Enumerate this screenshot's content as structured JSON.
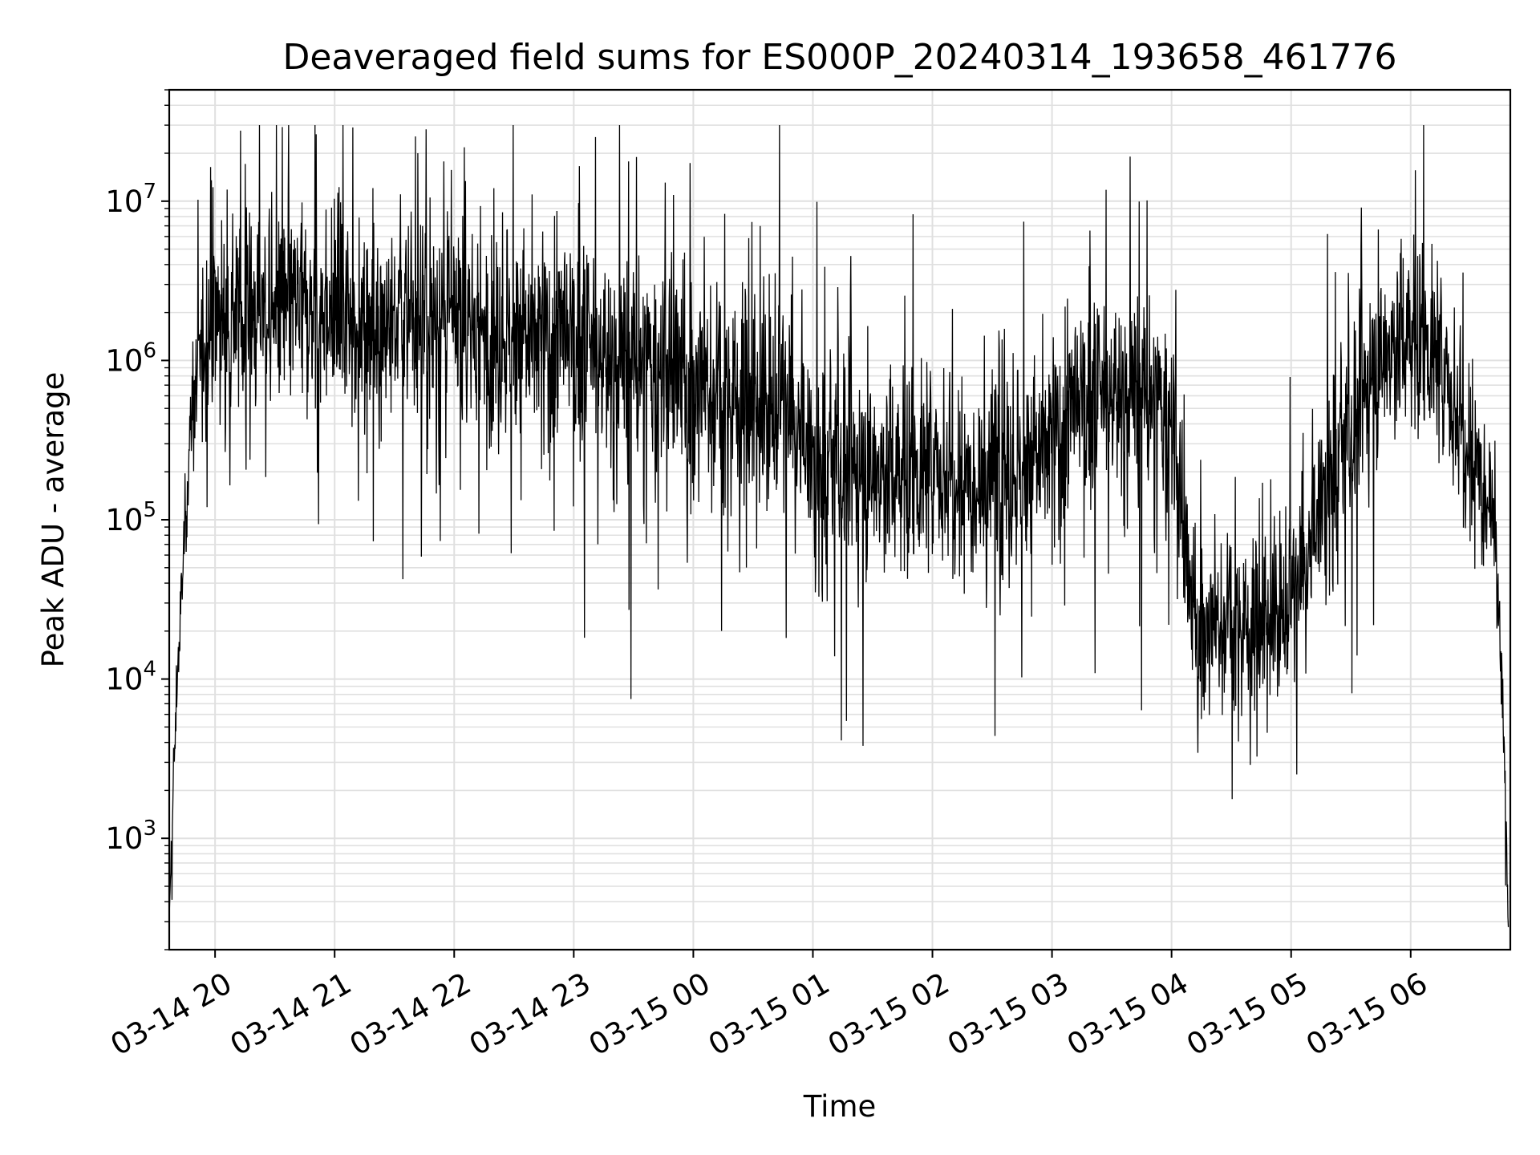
{
  "chart_data": {
    "type": "line",
    "title": "Deaveraged field sums for ES000P_20240314_193658_461776",
    "xlabel": "Time",
    "ylabel": "Peak ADU - average",
    "yscale": "log",
    "ylim": [
      200,
      50000000
    ],
    "xlim": [
      "2024-03-14 19:37",
      "2024-03-15 06:50"
    ],
    "grid": true,
    "line_color": "#000000",
    "grid_color": "#e0e0e0",
    "x_tick_labels": [
      "03-14 20",
      "03-14 21",
      "03-14 22",
      "03-14 23",
      "03-15 00",
      "03-15 01",
      "03-15 02",
      "03-15 03",
      "03-15 04",
      "03-15 05",
      "03-15 06"
    ],
    "y_tick_labels": [
      {
        "base": "10",
        "exp": "3"
      },
      {
        "base": "10",
        "exp": "4"
      },
      {
        "base": "10",
        "exp": "5"
      },
      {
        "base": "10",
        "exp": "6"
      },
      {
        "base": "10",
        "exp": "7"
      }
    ],
    "series": [
      {
        "x": [
          "2024-03-14 19:37",
          "2024-03-14 19:39",
          "2024-03-14 19:41",
          "2024-03-14 19:43",
          "2024-03-14 19:45",
          "2024-03-14 19:48",
          "2024-03-14 19:51",
          "2024-03-14 19:55",
          "2024-03-14 20:00",
          "2024-03-14 20:08",
          "2024-03-14 20:15",
          "2024-03-14 20:30",
          "2024-03-14 20:45",
          "2024-03-14 21:00",
          "2024-03-14 21:15",
          "2024-03-14 21:30",
          "2024-03-14 21:45",
          "2024-03-14 22:00",
          "2024-03-14 22:15",
          "2024-03-14 22:30",
          "2024-03-14 22:45",
          "2024-03-14 23:00",
          "2024-03-14 23:15",
          "2024-03-14 23:30",
          "2024-03-14 23:45",
          "2024-03-15 00:00",
          "2024-03-15 00:15",
          "2024-03-15 00:30",
          "2024-03-15 00:45",
          "2024-03-15 01:00",
          "2024-03-15 01:15",
          "2024-03-15 01:30",
          "2024-03-15 01:45",
          "2024-03-15 02:00",
          "2024-03-15 02:15",
          "2024-03-15 02:30",
          "2024-03-15 02:45",
          "2024-03-15 03:00",
          "2024-03-15 03:15",
          "2024-03-15 03:30",
          "2024-03-15 03:45",
          "2024-03-15 04:00",
          "2024-03-15 04:10",
          "2024-03-15 04:20",
          "2024-03-15 04:30",
          "2024-03-15 04:40",
          "2024-03-15 04:50",
          "2024-03-15 05:00",
          "2024-03-15 05:10",
          "2024-03-15 05:20",
          "2024-03-15 05:30",
          "2024-03-15 05:40",
          "2024-03-15 05:50",
          "2024-03-15 06:00",
          "2024-03-15 06:10",
          "2024-03-15 06:20",
          "2024-03-15 06:30",
          "2024-03-15 06:36",
          "2024-03-15 06:40",
          "2024-03-15 06:43",
          "2024-03-15 06:45",
          "2024-03-15 06:47",
          "2024-03-15 06:49"
        ],
        "y": [
          300,
          2000,
          10000,
          30000,
          100000,
          400000,
          800000,
          1500000,
          2000000,
          2200000,
          2000000,
          2000000,
          2100000,
          2000000,
          1800000,
          1800000,
          1800000,
          1700000,
          1500000,
          1400000,
          1300000,
          1200000,
          1000000,
          900000,
          800000,
          700000,
          600000,
          550000,
          550000,
          200000,
          200000,
          200000,
          200000,
          200000,
          200000,
          200000,
          200000,
          300000,
          500000,
          600000,
          600000,
          400000,
          25000,
          20000,
          25000,
          20000,
          25000,
          30000,
          60000,
          200000,
          300000,
          800000,
          1200000,
          1500000,
          1200000,
          600000,
          300000,
          200000,
          150000,
          80000,
          15000,
          3000,
          300
        ],
        "spread": [
          0.05,
          0.4,
          0.3,
          0.3,
          0.35,
          0.4,
          0.5,
          0.6,
          0.8,
          0.8,
          0.8,
          0.8,
          0.8,
          0.85,
          0.8,
          0.8,
          0.85,
          0.85,
          0.85,
          0.9,
          0.95,
          0.95,
          0.95,
          0.95,
          0.95,
          0.95,
          0.9,
          0.9,
          0.9,
          0.9,
          0.9,
          0.85,
          0.85,
          0.85,
          0.85,
          0.85,
          0.85,
          0.9,
          0.9,
          0.9,
          0.9,
          0.9,
          0.7,
          0.7,
          0.7,
          0.7,
          0.7,
          0.7,
          0.8,
          0.85,
          0.85,
          0.8,
          0.8,
          0.8,
          0.8,
          0.8,
          0.8,
          0.8,
          0.6,
          0.5,
          0.4,
          0.3,
          0.1
        ]
      }
    ]
  }
}
